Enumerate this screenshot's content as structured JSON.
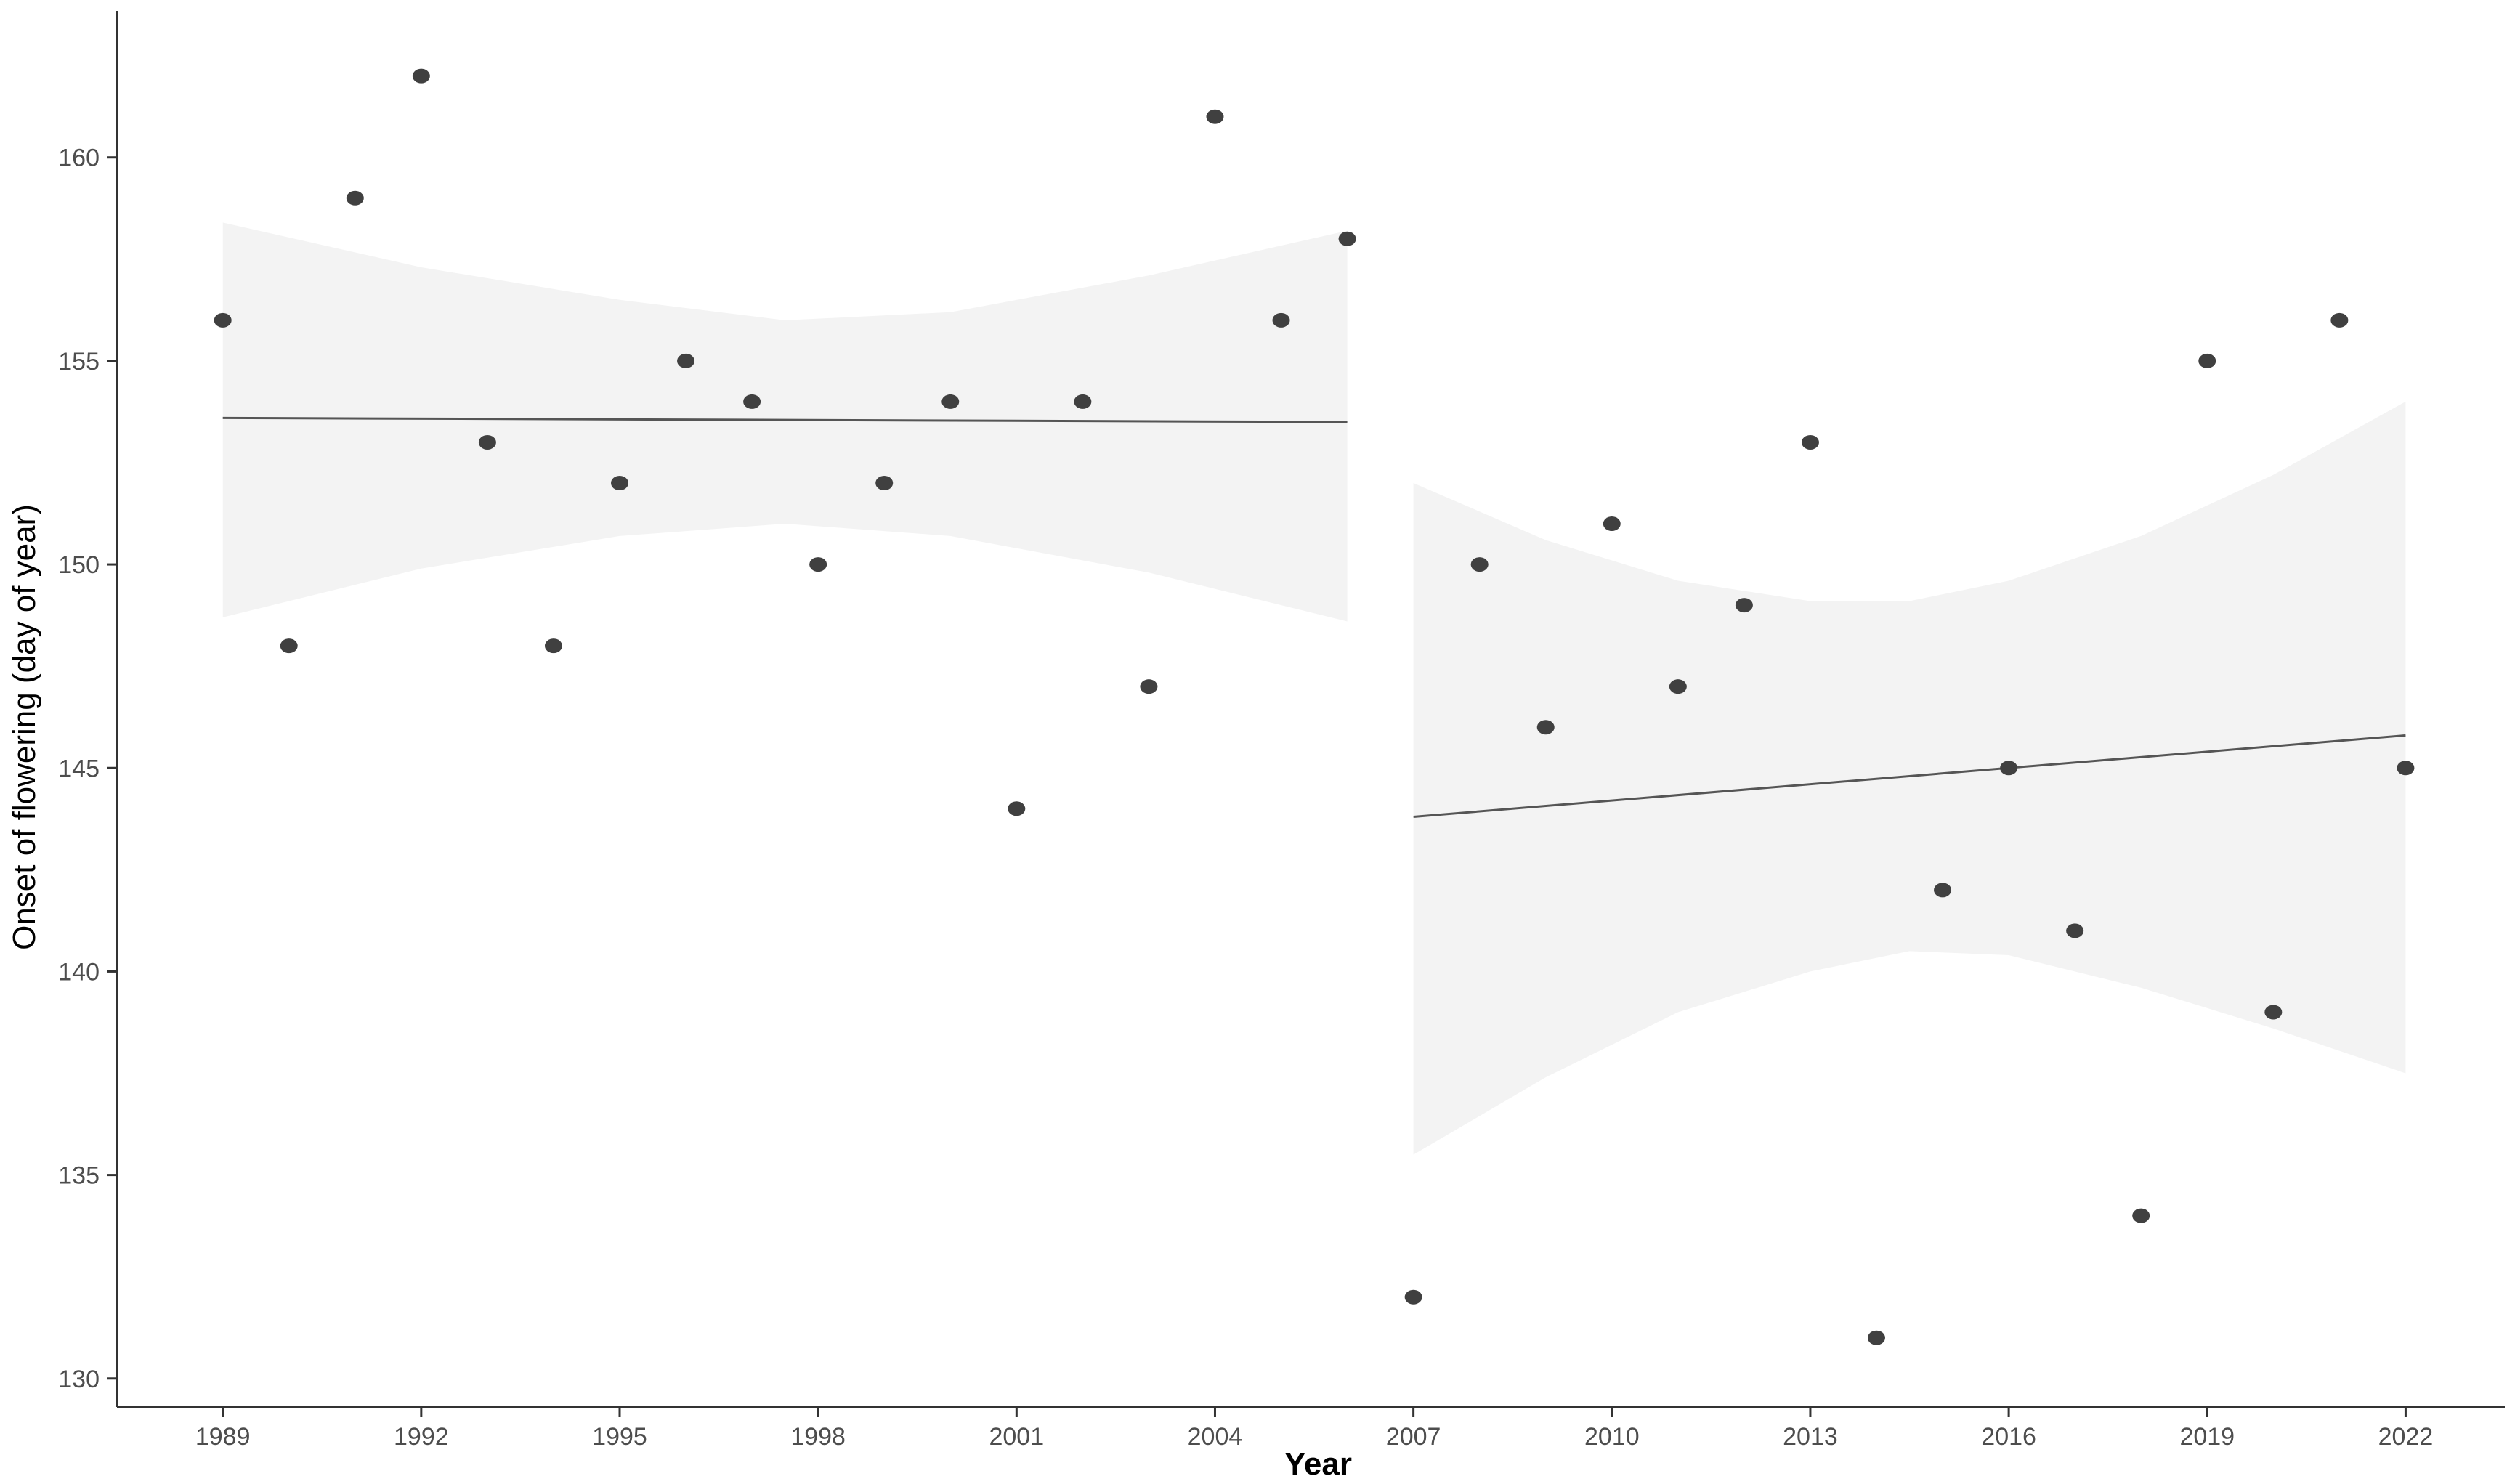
{
  "chart_data": {
    "type": "scatter",
    "title": "",
    "xlabel": "Year",
    "ylabel": "Onset of flowering (day of year)",
    "xlim": [
      1987.4,
      2023.5
    ],
    "ylim": [
      129.3,
      163.6
    ],
    "x_ticks": [
      1989,
      1992,
      1995,
      1998,
      2001,
      2004,
      2007,
      2010,
      2013,
      2016,
      2019,
      2022
    ],
    "y_ticks": [
      130,
      135,
      140,
      145,
      150,
      155,
      160
    ],
    "grid": false,
    "legend": "none",
    "series": [
      {
        "values": [
          {
            "x": 1989,
            "y": 156
          },
          {
            "x": 1990,
            "y": 148
          },
          {
            "x": 1991,
            "y": 159
          },
          {
            "x": 1992,
            "y": 162
          },
          {
            "x": 1993,
            "y": 153
          },
          {
            "x": 1994,
            "y": 148
          },
          {
            "x": 1995,
            "y": 152
          },
          {
            "x": 1996,
            "y": 155
          },
          {
            "x": 1997,
            "y": 154
          },
          {
            "x": 1998,
            "y": 150
          },
          {
            "x": 1999,
            "y": 152
          },
          {
            "x": 2000,
            "y": 154
          },
          {
            "x": 2001,
            "y": 144
          },
          {
            "x": 2002,
            "y": 154
          },
          {
            "x": 2003,
            "y": 147
          },
          {
            "x": 2004,
            "y": 161
          },
          {
            "x": 2005,
            "y": 156
          },
          {
            "x": 2006,
            "y": 158
          },
          {
            "x": 2007,
            "y": 132
          },
          {
            "x": 2008,
            "y": 150
          },
          {
            "x": 2009,
            "y": 146
          },
          {
            "x": 2010,
            "y": 151
          },
          {
            "x": 2011,
            "y": 147
          },
          {
            "x": 2012,
            "y": 149
          },
          {
            "x": 2013,
            "y": 153
          },
          {
            "x": 2014,
            "y": 131
          },
          {
            "x": 2015,
            "y": 142
          },
          {
            "x": 2016,
            "y": 145
          },
          {
            "x": 2017,
            "y": 141
          },
          {
            "x": 2018,
            "y": 134
          },
          {
            "x": 2019,
            "y": 155
          },
          {
            "x": 2020,
            "y": 139
          },
          {
            "x": 2021,
            "y": 156
          },
          {
            "x": 2022,
            "y": 145
          }
        ]
      }
    ],
    "trend_fits": [
      {
        "x_range": [
          1989,
          2006
        ],
        "line": [
          153.6,
          153.5
        ],
        "ci": [
          {
            "x": 1989,
            "lo": 148.7,
            "hi": 158.4
          },
          {
            "x": 1992,
            "lo": 149.9,
            "hi": 157.3
          },
          {
            "x": 1995,
            "lo": 150.7,
            "hi": 156.5
          },
          {
            "x": 1997.5,
            "lo": 151.0,
            "hi": 156.0
          },
          {
            "x": 2000,
            "lo": 150.7,
            "hi": 156.2
          },
          {
            "x": 2003,
            "lo": 149.8,
            "hi": 157.1
          },
          {
            "x": 2006,
            "lo": 148.6,
            "hi": 158.2
          }
        ]
      },
      {
        "x_range": [
          2007,
          2022
        ],
        "line": [
          143.8,
          145.8
        ],
        "ci": [
          {
            "x": 2007,
            "lo": 135.5,
            "hi": 152.0
          },
          {
            "x": 2009,
            "lo": 137.4,
            "hi": 150.6
          },
          {
            "x": 2011,
            "lo": 139.0,
            "hi": 149.6
          },
          {
            "x": 2013,
            "lo": 140.0,
            "hi": 149.1
          },
          {
            "x": 2014.5,
            "lo": 140.5,
            "hi": 149.1
          },
          {
            "x": 2016,
            "lo": 140.4,
            "hi": 149.6
          },
          {
            "x": 2018,
            "lo": 139.6,
            "hi": 150.7
          },
          {
            "x": 2020,
            "lo": 138.6,
            "hi": 152.2
          },
          {
            "x": 2022,
            "lo": 137.5,
            "hi": 154.0
          }
        ]
      }
    ]
  },
  "colors": {
    "point": "#404040",
    "ci_band": "#f3f3f3",
    "fit_line": "#555555",
    "axis": "#333333",
    "tick_label": "#4d4d4d",
    "axis_title": "#000000"
  }
}
